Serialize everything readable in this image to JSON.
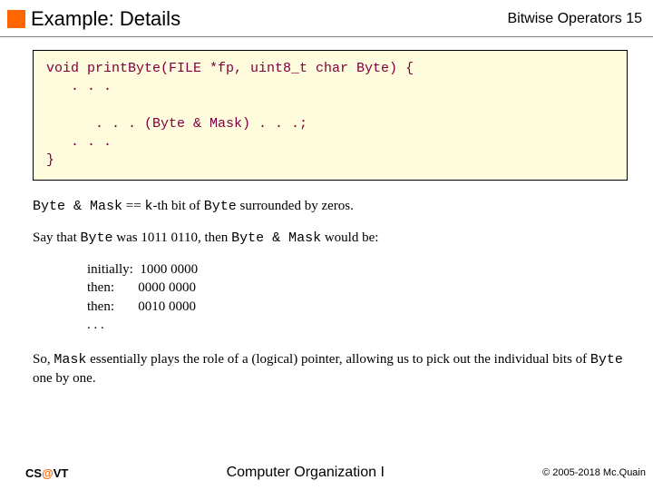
{
  "header": {
    "title": "Example: Details",
    "rightLabel": "Bitwise Operators",
    "slideNumber": "15",
    "accentColor": "#ff6600"
  },
  "codebox": {
    "background": "#fffcde",
    "textColor": "#800040",
    "line1": "void printByte(FILE *fp, uint8_t char Byte) {",
    "line2": "   . . .",
    "line3": "",
    "line4": "      . . . (Byte & Mask) . . .;",
    "line5": "   . . .",
    "line6": "}"
  },
  "para1": {
    "prefix": "Byte & Mask",
    "mid": " == ",
    "kpart": "k",
    "mid2": "-th bit of ",
    "byteWord": "Byte",
    "suffix": " surrounded by zeros."
  },
  "para2": {
    "p1": "Say that ",
    "byteWord": "Byte",
    "p2": " was 1011 0110, then ",
    "expr": "Byte & Mask",
    "p3": " would be:"
  },
  "table": {
    "rows": [
      {
        "label": "initially:",
        "value": "1000 0000"
      },
      {
        "label": "then:",
        "value": "0000 0000"
      },
      {
        "label": "then:",
        "value": "0010 0000"
      }
    ],
    "ellipsis": ". . ."
  },
  "para3": {
    "p1": "So, ",
    "maskWord": "Mask",
    "p2": " essentially plays the role of a (logical) pointer, allowing us to pick out the individual bits of ",
    "byteWord": "Byte",
    "p3": " one by one."
  },
  "footer": {
    "leftPrefix": "CS",
    "leftAt": "@",
    "leftSuffix": "VT",
    "center": "Computer Organization I",
    "right": "© 2005-2018 Mc.Quain"
  }
}
